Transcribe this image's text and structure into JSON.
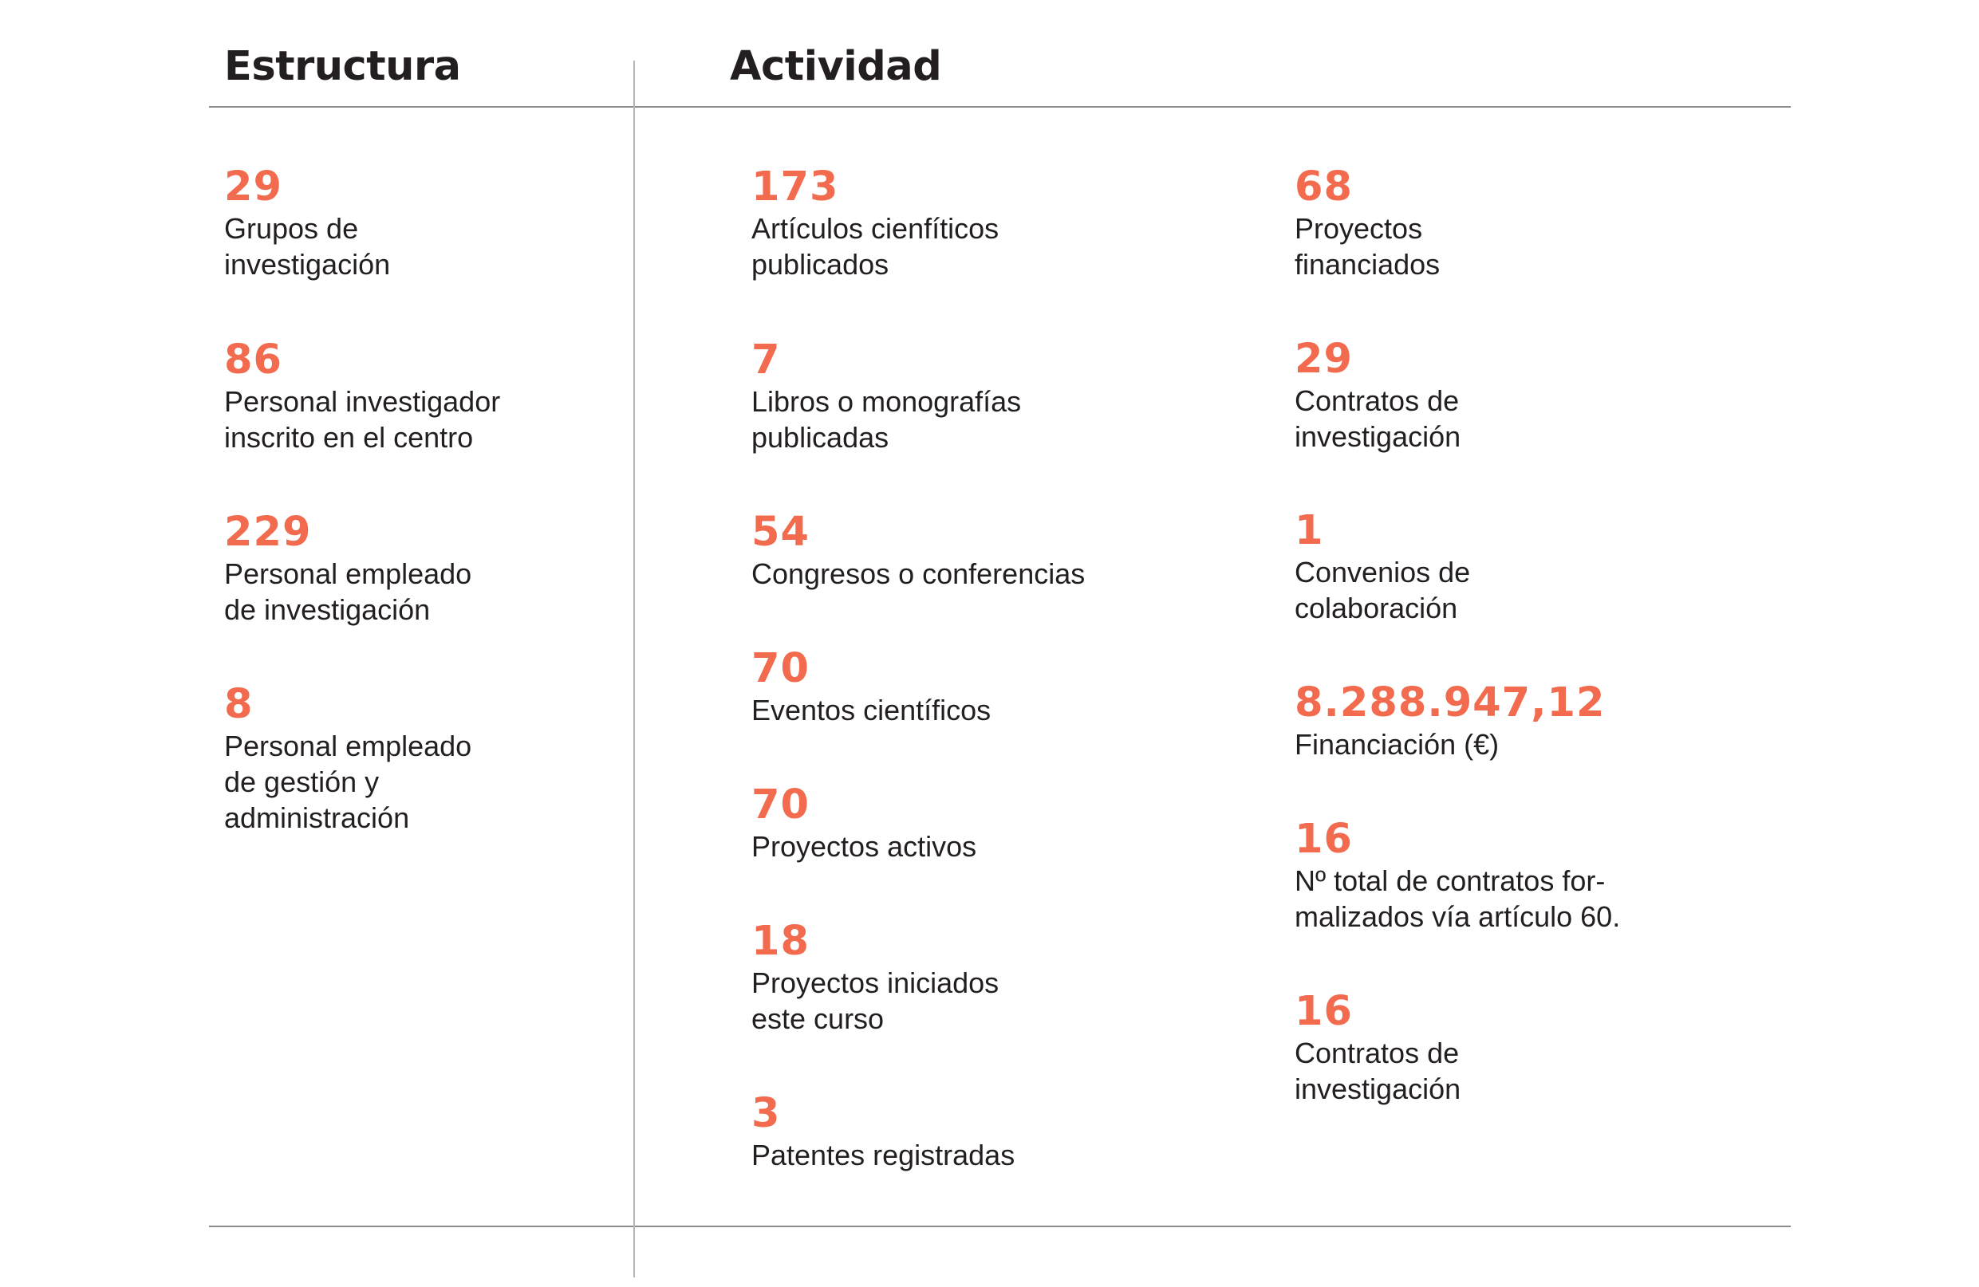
{
  "headers": {
    "estructura": "Estructura",
    "actividad": "Actividad"
  },
  "colors": {
    "accent": "#f26b4f",
    "text": "#231f20",
    "rule": "#8c8c8c"
  },
  "estructura": [
    {
      "value": "29",
      "label": "Grupos de\ninvestigación"
    },
    {
      "value": "86",
      "label": "Personal investigador\ninscrito en el centro"
    },
    {
      "value": "229",
      "label": "Personal empleado\nde investigación"
    },
    {
      "value": "8",
      "label": "Personal empleado\nde gestión y\nadministración"
    }
  ],
  "actividad_col1": [
    {
      "value": "173",
      "label": "Artículos cienfíticos\npublicados"
    },
    {
      "value": "7",
      "label": "Libros o monografías\npublicadas"
    },
    {
      "value": "54",
      "label": "Congresos o conferencias"
    },
    {
      "value": "70",
      "label": "Eventos científicos"
    },
    {
      "value": "70",
      "label": "Proyectos activos"
    },
    {
      "value": "18",
      "label": "Proyectos iniciados\neste curso"
    },
    {
      "value": "3",
      "label": "Patentes registradas"
    }
  ],
  "actividad_col2": [
    {
      "value": "68",
      "label": "Proyectos\nfinanciados"
    },
    {
      "value": "29",
      "label": "Contratos de\ninvestigación"
    },
    {
      "value": "1",
      "label": "Convenios de\ncolaboración"
    },
    {
      "value": "8.288.947,12",
      "label": "Financiación (€)"
    },
    {
      "value": "16",
      "label": "Nº total de contratos for-\nmalizados vía artículo 60."
    },
    {
      "value": "16",
      "label": "Contratos de\ninvestigación"
    }
  ]
}
